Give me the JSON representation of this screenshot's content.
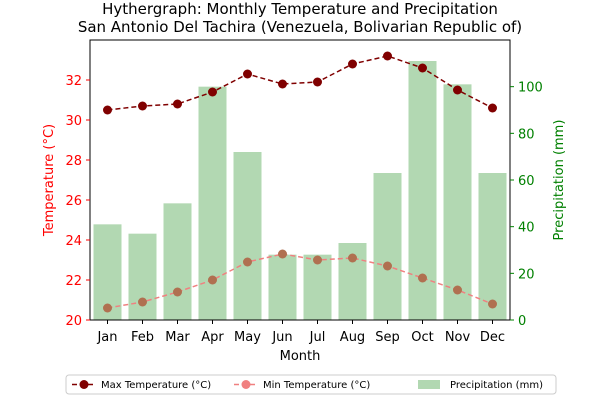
{
  "chart_data": {
    "type": "bar+line",
    "title_line1": "Hythergraph: Monthly Temperature and Precipitation",
    "title_line2": "San Antonio Del Tachira (Venezuela, Bolivarian Republic of)",
    "xlabel": "Month",
    "ylabel_left": "Temperature (°C)",
    "ylabel_right": "Precipitation (mm)",
    "categories": [
      "Jan",
      "Feb",
      "Mar",
      "Apr",
      "May",
      "Jun",
      "Jul",
      "Aug",
      "Sep",
      "Oct",
      "Nov",
      "Dec"
    ],
    "ylim_left": [
      20,
      34
    ],
    "yticks_left": [
      20,
      22,
      24,
      26,
      28,
      30,
      32
    ],
    "ylim_right": [
      0,
      120
    ],
    "yticks_right": [
      0,
      20,
      40,
      60,
      80,
      100
    ],
    "series": [
      {
        "name": "Max Temperature (°C)",
        "axis": "left",
        "kind": "line",
        "values": [
          30.5,
          30.7,
          30.8,
          31.4,
          32.3,
          31.8,
          31.9,
          32.8,
          33.2,
          32.6,
          31.5,
          30.6
        ]
      },
      {
        "name": "Min Temperature (°C)",
        "axis": "left",
        "kind": "line",
        "values": [
          20.6,
          20.9,
          21.4,
          22.0,
          22.9,
          23.3,
          23.0,
          23.1,
          22.7,
          22.1,
          21.5,
          20.8
        ]
      },
      {
        "name": "Precipitation (mm)",
        "axis": "right",
        "kind": "bar",
        "values": [
          41,
          37,
          50,
          100,
          72,
          28,
          28,
          33,
          63,
          111,
          101,
          63
        ]
      }
    ],
    "colors": {
      "max": "#800000",
      "min_line": "#f08080",
      "min_marker": "#b07050",
      "precip": "#b2d8b2",
      "left_axis": "#ff0000",
      "right_axis": "#008000"
    },
    "legend_position": "bottom-center",
    "grid": false
  }
}
